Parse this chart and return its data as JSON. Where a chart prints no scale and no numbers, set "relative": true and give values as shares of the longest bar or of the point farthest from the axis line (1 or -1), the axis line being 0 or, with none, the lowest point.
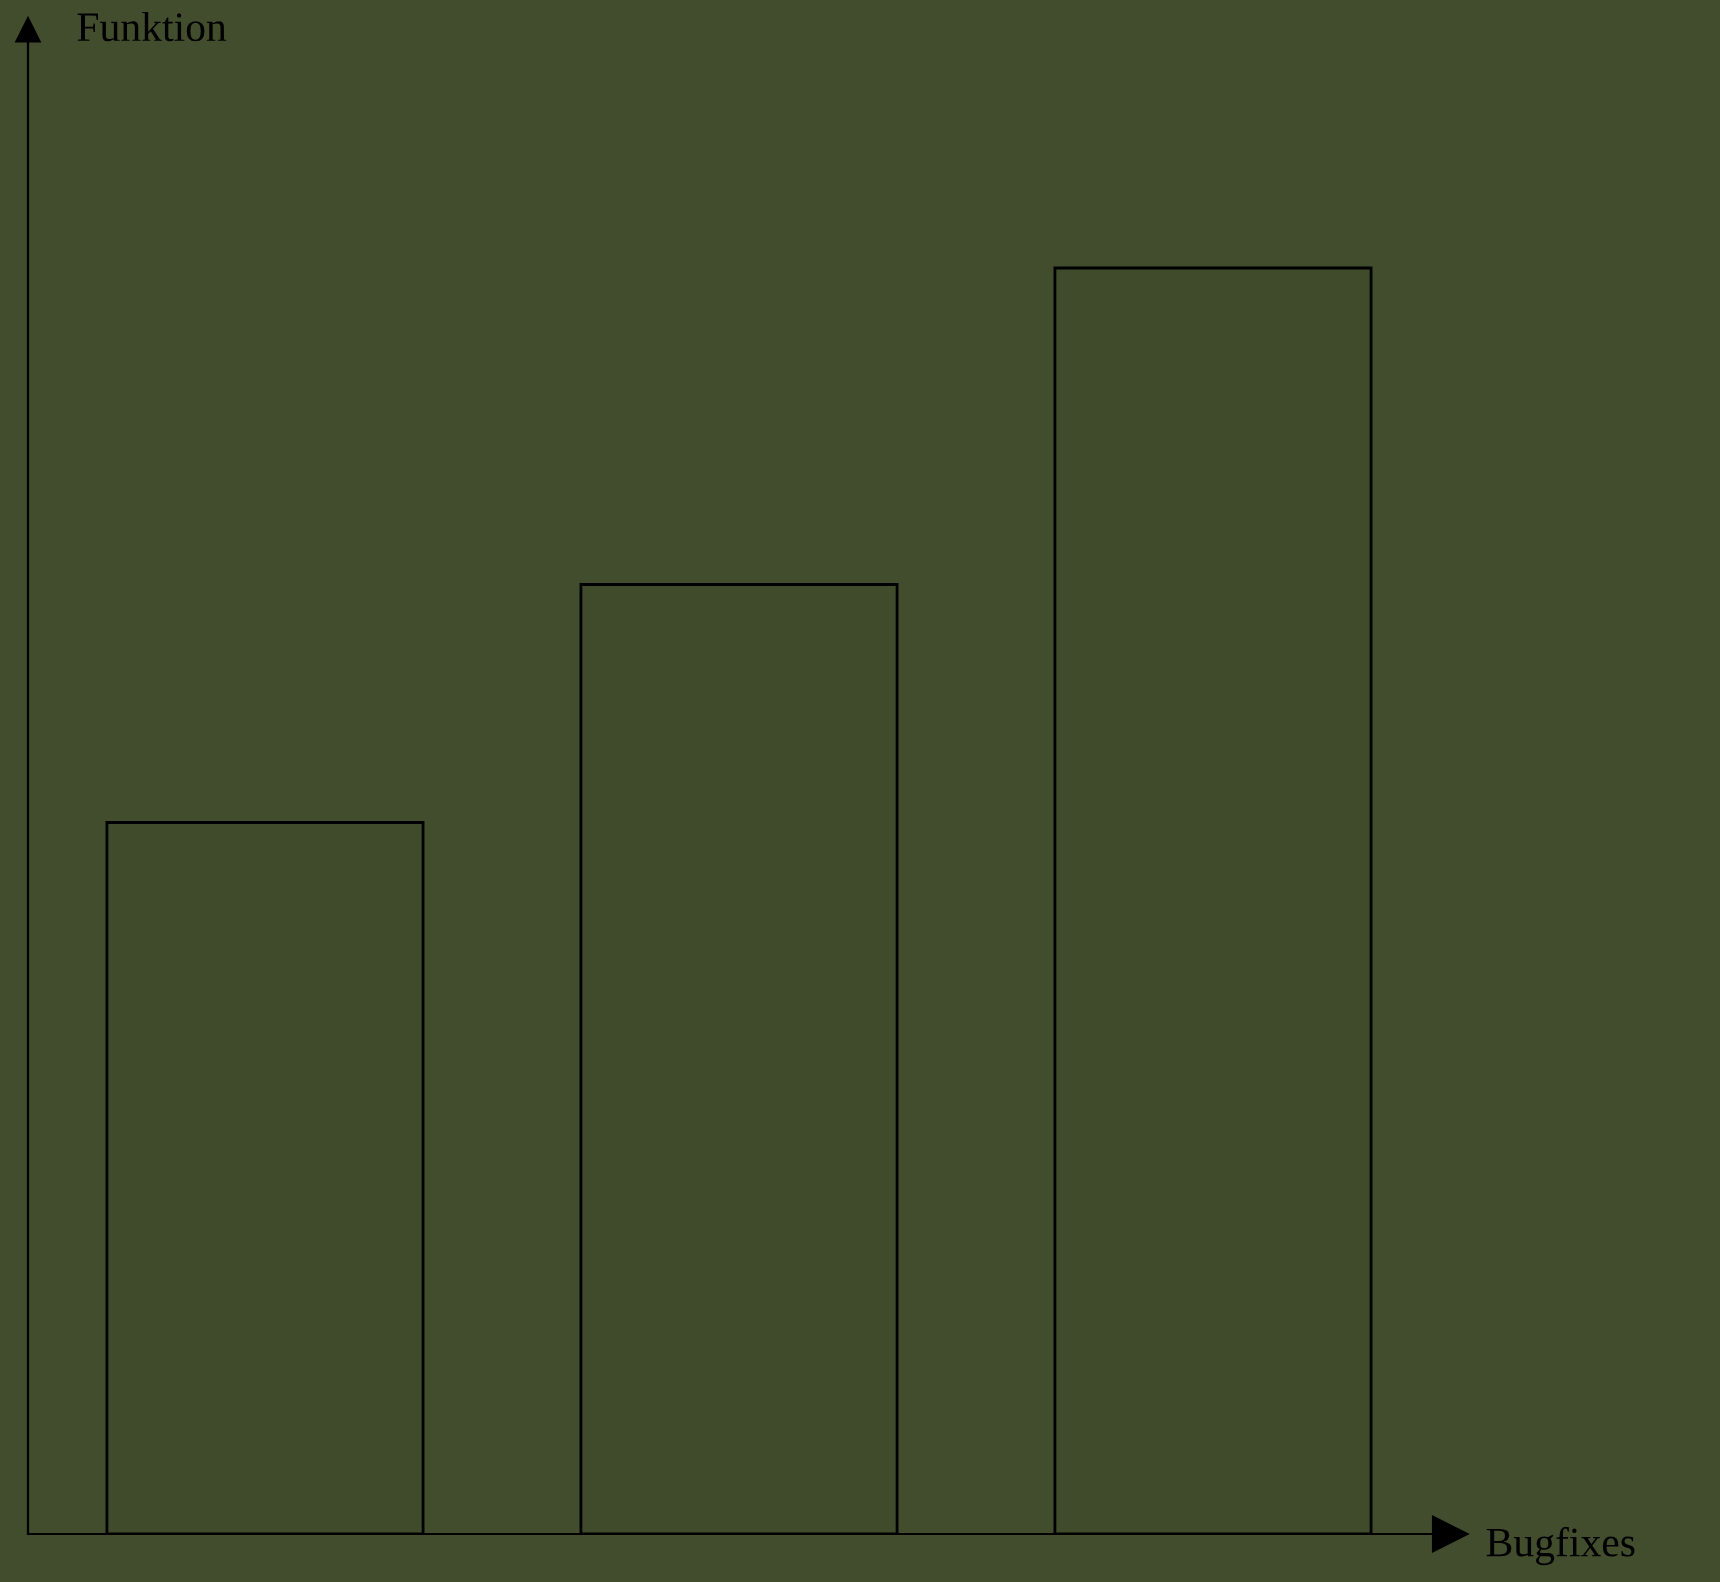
{
  "chart_data": {
    "type": "bar",
    "relative": true,
    "xlabel": "Bugfixes",
    "annotations": [
      "Funktion"
    ],
    "categories": [
      null,
      null,
      null
    ],
    "values": [
      0.562,
      0.75,
      1.0
    ],
    "color": "#3f4b2b",
    "grid": false,
    "legend": false
  }
}
